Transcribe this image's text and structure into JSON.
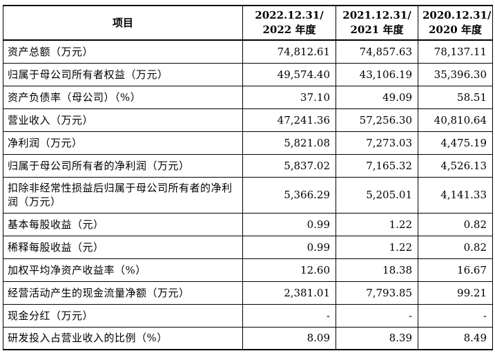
{
  "table": {
    "headers": [
      {
        "line1": "项目",
        "line2": ""
      },
      {
        "line1": "2022.12.31/",
        "line2": "2022 年度"
      },
      {
        "line1": "2021.12.31/",
        "line2": "2021 年度"
      },
      {
        "line1": "2020.12.31/",
        "line2": "2020 年度"
      }
    ],
    "rows": [
      {
        "label": "资产总额（万元）",
        "values": [
          "74,812.61",
          "74,857.63",
          "78,137.11"
        ]
      },
      {
        "label": "归属于母公司所有者权益（万元）",
        "values": [
          "49,574.40",
          "43,106.19",
          "35,396.30"
        ]
      },
      {
        "label": "资产负债率（母公司）（%）",
        "values": [
          "37.10",
          "49.09",
          "58.51"
        ]
      },
      {
        "label": "营业收入（万元）",
        "values": [
          "47,241.36",
          "57,256.30",
          "40,810.64"
        ]
      },
      {
        "label": "净利润（万元）",
        "values": [
          "5,821.08",
          "7,273.03",
          "4,475.19"
        ]
      },
      {
        "label": "归属于母公司所有者的净利润（万元）",
        "values": [
          "5,837.02",
          "7,165.32",
          "4,526.13"
        ]
      },
      {
        "label": "扣除非经常性损益后归属于母公司所有者的净利润（万元）",
        "values": [
          "5,366.29",
          "5,205.01",
          "4,141.33"
        ]
      },
      {
        "label": "基本每股收益（元）",
        "values": [
          "0.99",
          "1.22",
          "0.82"
        ]
      },
      {
        "label": "稀释每股收益（元）",
        "values": [
          "0.99",
          "1.22",
          "0.82"
        ]
      },
      {
        "label": "加权平均净资产收益率（%）",
        "values": [
          "12.60",
          "18.38",
          "16.67"
        ]
      },
      {
        "label": "经营活动产生的现金流量净额（万元）",
        "values": [
          "2,381.01",
          "7,793.85",
          "99.21"
        ]
      },
      {
        "label": "现金分红（万元）",
        "values": [
          "-",
          "-",
          "-"
        ]
      },
      {
        "label": "研发投入占营业收入的比例（%）",
        "values": [
          "8.09",
          "8.39",
          "8.49"
        ]
      }
    ]
  }
}
